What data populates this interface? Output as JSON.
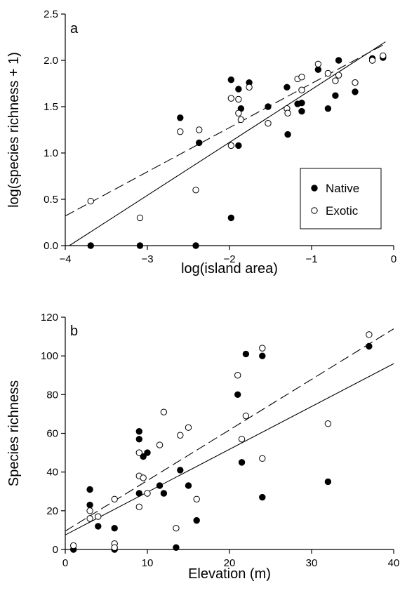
{
  "chart_data": [
    {
      "panel_label": "a",
      "type": "scatter",
      "xlabel": "log(island area)",
      "ylabel": "log(species richness + 1)",
      "xlim": [
        -4,
        0
      ],
      "ylim": [
        0,
        2.5
      ],
      "xticks": [
        "-4",
        "-3",
        "-2",
        "-1",
        "0"
      ],
      "yticks": [
        "0.0",
        "0.5",
        "1.0",
        "1.5",
        "2.0",
        "2.5"
      ],
      "xtick_values": [
        -4,
        -3,
        -2,
        -1,
        0
      ],
      "ytick_values": [
        0,
        0.5,
        1.0,
        1.5,
        2.0,
        2.5
      ],
      "legend": {
        "position": "bottom-right",
        "entries": [
          "Native",
          "Exotic"
        ]
      },
      "series": [
        {
          "name": "Native",
          "marker": "filled-circle",
          "points": [
            [
              -3.69,
              0.0
            ],
            [
              -3.09,
              0.0
            ],
            [
              -2.41,
              0.0
            ],
            [
              -1.98,
              0.3
            ],
            [
              -2.6,
              1.38
            ],
            [
              -2.37,
              1.11
            ],
            [
              -1.98,
              1.79
            ],
            [
              -1.89,
              1.69
            ],
            [
              -1.89,
              1.08
            ],
            [
              -1.86,
              1.48
            ],
            [
              -1.76,
              1.76
            ],
            [
              -1.53,
              1.5
            ],
            [
              -1.3,
              1.71
            ],
            [
              -1.29,
              1.2
            ],
            [
              -1.17,
              1.53
            ],
            [
              -1.12,
              1.54
            ],
            [
              -1.12,
              1.45
            ],
            [
              -0.92,
              1.9
            ],
            [
              -0.8,
              1.48
            ],
            [
              -0.71,
              1.62
            ],
            [
              -0.67,
              2.0
            ],
            [
              -0.47,
              1.66
            ],
            [
              -0.26,
              2.02
            ],
            [
              -0.13,
              2.03
            ]
          ],
          "fit": {
            "style": "solid",
            "x": [
              -3.95,
              -0.1
            ],
            "y": [
              0.0,
              2.2
            ]
          }
        },
        {
          "name": "Exotic",
          "marker": "open-circle",
          "points": [
            [
              -3.69,
              0.48
            ],
            [
              -3.09,
              0.3
            ],
            [
              -2.41,
              0.6
            ],
            [
              -1.98,
              1.08
            ],
            [
              -2.6,
              1.23
            ],
            [
              -2.37,
              1.25
            ],
            [
              -1.98,
              1.59
            ],
            [
              -1.89,
              1.58
            ],
            [
              -1.89,
              1.43
            ],
            [
              -1.86,
              1.36
            ],
            [
              -1.76,
              1.71
            ],
            [
              -1.53,
              1.32
            ],
            [
              -1.3,
              1.48
            ],
            [
              -1.29,
              1.43
            ],
            [
              -1.17,
              1.8
            ],
            [
              -1.12,
              1.82
            ],
            [
              -1.12,
              1.68
            ],
            [
              -0.92,
              1.96
            ],
            [
              -0.8,
              1.86
            ],
            [
              -0.71,
              1.78
            ],
            [
              -0.67,
              1.84
            ],
            [
              -0.47,
              1.76
            ],
            [
              -0.26,
              2.0
            ],
            [
              -0.13,
              2.05
            ]
          ],
          "fit": {
            "style": "dashed",
            "x": [
              -4.0,
              -0.1
            ],
            "y": [
              0.32,
              2.18
            ]
          }
        }
      ]
    },
    {
      "panel_label": "b",
      "type": "scatter",
      "xlabel": "Elevation (m)",
      "ylabel": "Species richness",
      "xlim": [
        0,
        40
      ],
      "ylim": [
        0,
        120
      ],
      "xticks": [
        "0",
        "10",
        "20",
        "30",
        "40"
      ],
      "yticks": [
        "0",
        "20",
        "40",
        "60",
        "80",
        "100",
        "120"
      ],
      "xtick_values": [
        0,
        10,
        20,
        30,
        40
      ],
      "ytick_values": [
        0,
        20,
        40,
        60,
        80,
        100,
        120
      ],
      "series": [
        {
          "name": "Native",
          "marker": "filled-circle",
          "points": [
            [
              1,
              0
            ],
            [
              3,
              31
            ],
            [
              3,
              23
            ],
            [
              4,
              12
            ],
            [
              6,
              11
            ],
            [
              6,
              0
            ],
            [
              9,
              61
            ],
            [
              9,
              57
            ],
            [
              9,
              29
            ],
            [
              9.5,
              48
            ],
            [
              10,
              50
            ],
            [
              11.5,
              33
            ],
            [
              12,
              29
            ],
            [
              13.5,
              1
            ],
            [
              14,
              41
            ],
            [
              15,
              33
            ],
            [
              16,
              15
            ],
            [
              21,
              80
            ],
            [
              21.5,
              45
            ],
            [
              22,
              101
            ],
            [
              24,
              100
            ],
            [
              24,
              27
            ],
            [
              32,
              35
            ],
            [
              37,
              105
            ]
          ],
          "fit": {
            "style": "solid",
            "x": [
              0,
              40
            ],
            "y": [
              7.5,
              96
            ]
          }
        },
        {
          "name": "Exotic",
          "marker": "open-circle",
          "points": [
            [
              1,
              2
            ],
            [
              3,
              20
            ],
            [
              3,
              16
            ],
            [
              4,
              17
            ],
            [
              6,
              26
            ],
            [
              6,
              3
            ],
            [
              6,
              1
            ],
            [
              9,
              50
            ],
            [
              9,
              38
            ],
            [
              9,
              22
            ],
            [
              9.5,
              37
            ],
            [
              10,
              29
            ],
            [
              11.5,
              54
            ],
            [
              12,
              71
            ],
            [
              13.5,
              11
            ],
            [
              14,
              59
            ],
            [
              15,
              63
            ],
            [
              16,
              26
            ],
            [
              21,
              90
            ],
            [
              21.5,
              57
            ],
            [
              22,
              69
            ],
            [
              24,
              104
            ],
            [
              24,
              47
            ],
            [
              32,
              65
            ],
            [
              37,
              111
            ]
          ],
          "fit": {
            "style": "dashed",
            "x": [
              0,
              40
            ],
            "y": [
              9.5,
              114
            ]
          }
        }
      ]
    }
  ]
}
